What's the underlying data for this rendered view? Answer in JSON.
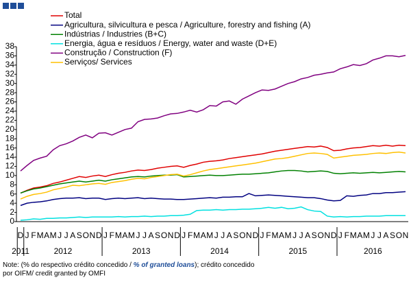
{
  "chart_data": {
    "type": "line",
    "categories": [
      "D",
      "J",
      "F",
      "M",
      "A",
      "M",
      "J",
      "J",
      "A",
      "S",
      "O",
      "N",
      "D",
      "J",
      "F",
      "M",
      "A",
      "M",
      "J",
      "J",
      "A",
      "S",
      "O",
      "N",
      "D",
      "J",
      "F",
      "M",
      "A",
      "M",
      "J",
      "J",
      "A",
      "S",
      "O",
      "N",
      "D",
      "J",
      "F",
      "M",
      "A",
      "M",
      "J",
      "J",
      "A",
      "S",
      "O",
      "N",
      "D",
      "J",
      "F",
      "M",
      "A",
      "M",
      "J",
      "J",
      "A",
      "S",
      "O",
      "N"
    ],
    "year_labels": [
      "2011",
      "2012",
      "2013",
      "2014",
      "2015",
      "2016"
    ],
    "series": [
      {
        "name": "Total",
        "color": "#e00000",
        "values": [
          6.2,
          6.8,
          7.3,
          7.5,
          7.8,
          8.3,
          8.6,
          9,
          9.4,
          9.8,
          9.6,
          9.9,
          10.1,
          9.8,
          10.2,
          10.5,
          10.7,
          11,
          11.2,
          11.1,
          11.3,
          11.6,
          11.8,
          12,
          12.1,
          11.8,
          12.2,
          12.5,
          12.9,
          13.1,
          13.2,
          13.4,
          13.7,
          13.9,
          14.1,
          14.3,
          14.5,
          14.7,
          15,
          15.3,
          15.5,
          15.7,
          15.9,
          16.1,
          16.3,
          16.2,
          16.4,
          16.1,
          15.4,
          15.5,
          15.8,
          16,
          16.1,
          16.3,
          16.5,
          16.4,
          16.6,
          16.4,
          16.6,
          16.5
        ]
      },
      {
        "name": "Agricultura, silvicultura e pesca / Agriculture, forestry and fishing (A)",
        "color": "#000080",
        "values": [
          3.5,
          4,
          4.2,
          4.3,
          4.5,
          4.8,
          5,
          5.1,
          5.1,
          5.2,
          5,
          5.1,
          5.1,
          4.8,
          5,
          5.1,
          5,
          5.1,
          5.2,
          5,
          5.1,
          5,
          4.9,
          4.9,
          4.8,
          4.8,
          4.9,
          5,
          5.1,
          5.2,
          5.1,
          5.3,
          5.3,
          5.4,
          5.4,
          6.1,
          5.6,
          5.7,
          5.8,
          5.7,
          5.6,
          5.5,
          5.4,
          5.3,
          5.2,
          5.2,
          5,
          4.7,
          4.5,
          4.6,
          5.6,
          5.5,
          5.7,
          5.8,
          6.1,
          6.1,
          6.3,
          6.3,
          6.4,
          6.5
        ]
      },
      {
        "name": "Indústrias / Industries (B+C)",
        "color": "#008000",
        "values": [
          6.2,
          6.7,
          7.1,
          7.3,
          7.6,
          7.9,
          8.2,
          8.4,
          8.6,
          8.8,
          8.6,
          8.8,
          9,
          8.8,
          9.1,
          9.3,
          9.5,
          9.7,
          9.8,
          9.7,
          9.9,
          10,
          10.1,
          10.1,
          10.2,
          9.7,
          9.8,
          9.9,
          10,
          10.1,
          10,
          10,
          10.1,
          10.2,
          10.3,
          10.3,
          10.4,
          10.5,
          10.6,
          10.8,
          11,
          11.1,
          11.1,
          11,
          10.8,
          10.9,
          11,
          10.9,
          10.5,
          10.4,
          10.5,
          10.6,
          10.5,
          10.6,
          10.7,
          10.6,
          10.7,
          10.8,
          10.9,
          10.8
        ]
      },
      {
        "name": "Energia, água e resíduos / Energy, water and waste (D+E)",
        "color": "#00e0e0",
        "values": [
          0.3,
          0.4,
          0.6,
          0.5,
          0.7,
          0.7,
          0.8,
          0.8,
          0.9,
          1,
          0.9,
          1,
          1,
          1,
          1,
          1.1,
          1,
          1.1,
          1.1,
          1.2,
          1.1,
          1.2,
          1.2,
          1.3,
          1.3,
          1.4,
          1.6,
          2.4,
          2.5,
          2.5,
          2.6,
          2.5,
          2.6,
          2.6,
          2.7,
          2.7,
          2.8,
          2.9,
          3.1,
          2.9,
          3.1,
          2.8,
          2.9,
          3.2,
          2.6,
          2.3,
          2.2,
          1.2,
          1,
          1.1,
          1,
          1.1,
          1.1,
          1.2,
          1.2,
          1.2,
          1.3,
          1.3,
          1.3,
          1.3
        ]
      },
      {
        "name": "Construção / Construction  (F)",
        "color": "#800080",
        "values": [
          11,
          12.2,
          13.3,
          13.8,
          14.2,
          15.6,
          16.5,
          16.9,
          17.5,
          18.3,
          18.8,
          18.2,
          19.2,
          19.3,
          18.8,
          19.4,
          20,
          20.3,
          21.7,
          22.2,
          22.3,
          22.5,
          23,
          23.4,
          23.5,
          23.8,
          24.2,
          23.8,
          24.3,
          25.2,
          25.1,
          26,
          26.2,
          25.5,
          26.6,
          27.3,
          28,
          28.6,
          28.5,
          28.8,
          29.4,
          30,
          30.4,
          31,
          31.3,
          31.8,
          32,
          32.3,
          32.5,
          33.2,
          33.6,
          34.1,
          33.9,
          34.3,
          35.1,
          35.5,
          36,
          36,
          35.8,
          36.1
        ]
      },
      {
        "name": "Serviços/ Services",
        "color": "#ffc000",
        "values": [
          4.9,
          5.5,
          5.9,
          6.1,
          6.4,
          6.9,
          7.2,
          7.5,
          7.9,
          7.8,
          8,
          8.2,
          8.3,
          8.1,
          8.5,
          8.7,
          8.9,
          9.2,
          9.4,
          9.3,
          9.6,
          9.8,
          10,
          10.2,
          10.3,
          9.9,
          10.2,
          10.6,
          11,
          11.3,
          11.5,
          11.7,
          11.9,
          12.1,
          12.3,
          12.5,
          12.7,
          13,
          13.3,
          13.6,
          13.7,
          13.9,
          14.2,
          14.5,
          14.8,
          14.9,
          14.8,
          14.6,
          13.8,
          14,
          14.2,
          14.4,
          14.5,
          14.6,
          14.8,
          14.9,
          14.8,
          15,
          15.1,
          14.9
        ]
      }
    ],
    "ylim": [
      0,
      38
    ],
    "yticks": [
      0,
      2,
      4,
      6,
      8,
      10,
      12,
      14,
      16,
      18,
      20,
      22,
      24,
      26,
      28,
      30,
      32,
      34,
      36,
      38
    ],
    "grid": false,
    "note": [
      "Note: (% do respectivo crédito concedido / ",
      "% of granted loans",
      "); crédito concedido",
      "por OIFM/ credit granted by OMFI"
    ]
  }
}
